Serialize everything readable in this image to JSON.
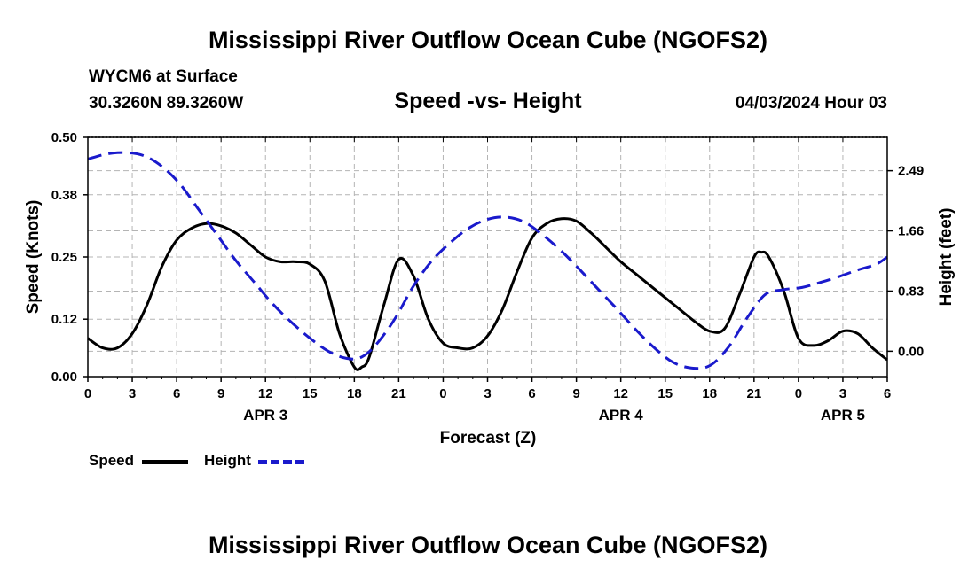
{
  "page_title": "Mississippi River Outflow Ocean Cube (NGOFS2)",
  "station": "WYCM6 at Surface",
  "location": "30.3260N  89.3260W",
  "datetime": "04/03/2024 Hour 03",
  "footer_title": "Mississippi River Outflow Ocean Cube (NGOFS2)",
  "colors": {
    "speed": "#000000",
    "height": "#1a1acc",
    "grid": "#b4b4b4"
  },
  "chart_data": {
    "type": "line",
    "title": "Speed -vs- Height",
    "xlabel": "Forecast (Z)",
    "ylabel": "Speed (Knots)",
    "y2label": "Height (feet)",
    "xlim": [
      0,
      54
    ],
    "ylim": [
      0,
      0.5
    ],
    "y2lim": [
      -0.35,
      2.95
    ],
    "x_ticks": [
      0,
      3,
      6,
      9,
      12,
      15,
      18,
      21,
      24,
      27,
      30,
      33,
      36,
      39,
      42,
      45,
      48,
      51,
      54
    ],
    "x_tick_labels": [
      "0",
      "3",
      "6",
      "9",
      "12",
      "15",
      "18",
      "21",
      "0",
      "3",
      "6",
      "9",
      "12",
      "15",
      "18",
      "21",
      "0",
      "3",
      "6"
    ],
    "day_labels": [
      {
        "label": "APR 3",
        "x": 12
      },
      {
        "label": "APR 4",
        "x": 36
      },
      {
        "label": "APR 5",
        "x": 51
      }
    ],
    "y_ticks": [
      0.0,
      0.12,
      0.25,
      0.38,
      0.5
    ],
    "y_tick_labels": [
      "0.00",
      "0.12",
      "0.25",
      "0.38",
      "0.50"
    ],
    "y2_ticks": [
      0.0,
      0.83,
      1.66,
      2.49
    ],
    "y2_tick_labels": [
      "0.00",
      "0.83",
      "1.66",
      "2.49"
    ],
    "grid": true,
    "legend_position": "bottom-left",
    "series": [
      {
        "name": "Speed",
        "axis": "left",
        "style": "solid",
        "x": [
          0,
          1,
          2,
          3,
          4,
          5,
          6,
          7,
          8,
          9,
          10,
          11,
          12,
          13,
          14,
          15,
          16,
          17,
          18,
          18.5,
          19,
          20,
          21,
          22,
          23,
          24,
          25,
          26,
          27,
          28,
          29,
          30,
          31,
          32,
          33,
          34,
          35,
          36,
          37,
          38,
          39,
          40,
          41,
          42,
          43,
          44,
          45,
          45.5,
          46,
          47,
          48,
          49,
          50,
          51,
          52,
          53,
          54
        ],
        "values": [
          0.08,
          0.06,
          0.06,
          0.09,
          0.15,
          0.23,
          0.285,
          0.31,
          0.32,
          0.315,
          0.3,
          0.275,
          0.25,
          0.24,
          0.24,
          0.235,
          0.2,
          0.09,
          0.02,
          0.02,
          0.04,
          0.15,
          0.245,
          0.21,
          0.12,
          0.07,
          0.06,
          0.06,
          0.085,
          0.14,
          0.22,
          0.29,
          0.32,
          0.33,
          0.325,
          0.3,
          0.27,
          0.24,
          0.215,
          0.19,
          0.165,
          0.14,
          0.115,
          0.095,
          0.1,
          0.17,
          0.25,
          0.26,
          0.25,
          0.18,
          0.08,
          0.065,
          0.075,
          0.095,
          0.09,
          0.06,
          0.035
        ]
      },
      {
        "name": "Height",
        "axis": "right",
        "style": "dashed",
        "x": [
          0,
          1.25,
          2.5,
          3.75,
          5,
          6.25,
          7.5,
          8.75,
          10,
          11.25,
          12.5,
          13.75,
          15,
          16.25,
          17.5,
          18.5,
          19.5,
          20.75,
          22,
          23.25,
          24.5,
          25.75,
          27,
          28.25,
          29.5,
          30.75,
          32,
          33.25,
          34.5,
          35.75,
          37,
          38.25,
          39.5,
          40.75,
          42,
          43.25,
          44.5,
          45.75,
          47,
          48.25,
          49.5,
          50.75,
          52,
          53.25,
          54
        ],
        "values": [
          2.65,
          2.72,
          2.74,
          2.7,
          2.55,
          2.3,
          1.95,
          1.6,
          1.25,
          0.95,
          0.65,
          0.4,
          0.18,
          0.0,
          -0.1,
          -0.08,
          0.1,
          0.45,
          0.9,
          1.25,
          1.5,
          1.7,
          1.82,
          1.85,
          1.78,
          1.6,
          1.38,
          1.12,
          0.85,
          0.58,
          0.3,
          0.05,
          -0.15,
          -0.23,
          -0.2,
          0.05,
          0.45,
          0.78,
          0.85,
          0.88,
          0.95,
          1.03,
          1.12,
          1.2,
          1.3
        ]
      }
    ]
  }
}
